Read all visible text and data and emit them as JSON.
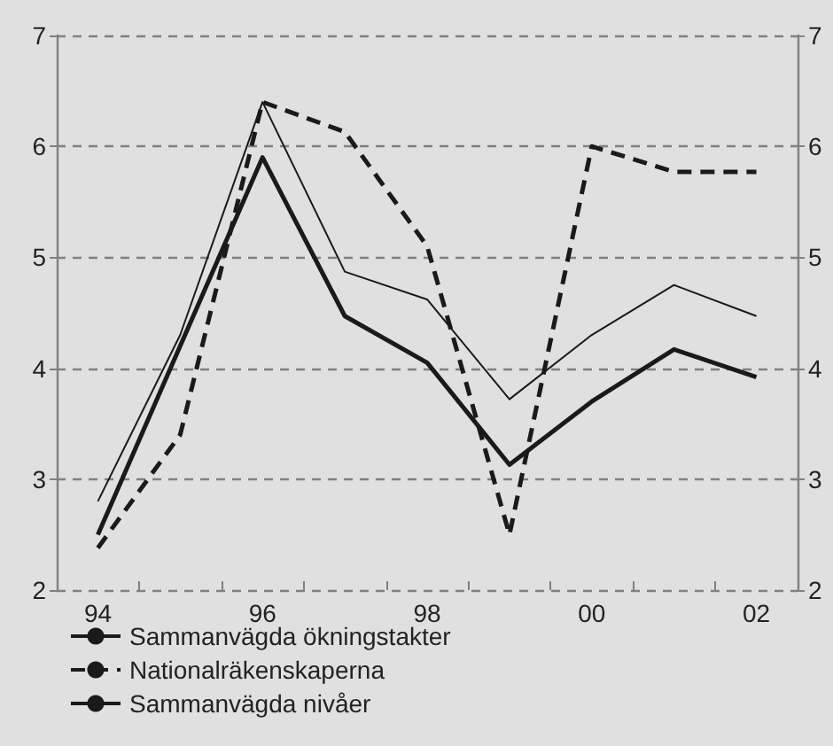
{
  "chart_data": {
    "type": "line",
    "categories": [
      "94",
      null,
      "96",
      null,
      "98",
      null,
      "00",
      null,
      "02"
    ],
    "series": [
      {
        "name": "Sammanvägda ökningstakter",
        "color": "#1a1a1a",
        "line_style": "solid",
        "values": [
          2.5,
          4.2,
          5.9,
          4.47,
          4.05,
          3.13,
          3.7,
          4.17,
          3.92
        ]
      },
      {
        "name": "Nationalräkenskaperna",
        "color": "#1a1a1a",
        "line_style": "dashed",
        "values": [
          2.38,
          3.4,
          6.4,
          6.13,
          5.1,
          2.5,
          6.0,
          5.77,
          5.77
        ]
      },
      {
        "name": "Sammanvägda nivåer",
        "color": "#1a1a1a",
        "line_style": "solid",
        "values": [
          2.8,
          4.3,
          6.4,
          4.87,
          4.62,
          3.72,
          4.3,
          4.75,
          4.47
        ]
      }
    ],
    "ylim": [
      2,
      7
    ],
    "yticks": [
      2,
      3,
      4,
      5,
      6,
      7
    ],
    "y2lim": [
      2,
      7
    ],
    "y2ticks": [
      2,
      3,
      4,
      5,
      6,
      7
    ],
    "grid": "y",
    "legend": "bottom left",
    "marker": "none"
  }
}
